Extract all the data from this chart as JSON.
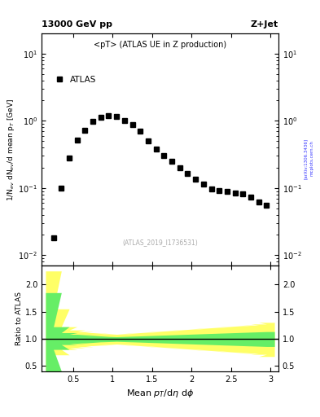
{
  "title_top": "13000 GeV pp",
  "title_right": "Z+Jet",
  "plot_title": "<pT> (ATLAS UE in Z production)",
  "legend_label": "ATLAS",
  "ylabel_main": "1/N$_{ev}$ dN$_{ev}$/d mean p$_T$ [GeV]",
  "ylabel_ratio": "Ratio to ATLAS",
  "watermark": "(ATLAS_2019_I1736531)",
  "arxiv_text": "[arXiv:1306.3436]",
  "mcplots_text": "mcplots.cern.ch",
  "main_x": [
    0.25,
    0.35,
    0.45,
    0.55,
    0.65,
    0.75,
    0.85,
    0.95,
    1.05,
    1.15,
    1.25,
    1.35,
    1.45,
    1.55,
    1.65,
    1.75,
    1.85,
    1.95,
    2.05,
    2.15,
    2.25,
    2.35,
    2.45,
    2.55,
    2.65,
    2.75,
    2.85,
    2.95
  ],
  "main_y": [
    0.018,
    0.1,
    0.28,
    0.52,
    0.72,
    0.97,
    1.12,
    1.2,
    1.15,
    1.0,
    0.88,
    0.7,
    0.5,
    0.38,
    0.3,
    0.25,
    0.2,
    0.165,
    0.135,
    0.115,
    0.098,
    0.092,
    0.088,
    0.085,
    0.082,
    0.073,
    0.062,
    0.055
  ],
  "ylim_main": [
    0.007,
    20.0
  ],
  "xlim": [
    0.1,
    3.1
  ],
  "xticks": [
    0.5,
    1.0,
    1.5,
    2.0,
    2.5,
    3.0
  ],
  "ratio_yellow_upper": [
    2.25,
    1.55,
    1.22,
    1.16,
    1.13,
    1.11,
    1.1,
    1.09,
    1.08,
    1.09,
    1.1,
    1.11,
    1.12,
    1.13,
    1.14,
    1.15,
    1.16,
    1.17,
    1.18,
    1.19,
    1.2,
    1.21,
    1.22,
    1.23,
    1.24,
    1.25,
    1.27,
    1.3
  ],
  "ratio_yellow_lower": [
    0.33,
    0.7,
    0.8,
    0.83,
    0.85,
    0.87,
    0.88,
    0.89,
    0.9,
    0.89,
    0.88,
    0.87,
    0.86,
    0.85,
    0.84,
    0.83,
    0.82,
    0.81,
    0.8,
    0.79,
    0.78,
    0.77,
    0.76,
    0.75,
    0.74,
    0.73,
    0.71,
    0.67
  ],
  "ratio_green_upper": [
    1.85,
    1.22,
    1.11,
    1.08,
    1.07,
    1.06,
    1.05,
    1.04,
    1.035,
    1.04,
    1.045,
    1.05,
    1.055,
    1.06,
    1.065,
    1.07,
    1.075,
    1.08,
    1.085,
    1.09,
    1.095,
    1.1,
    1.105,
    1.11,
    1.115,
    1.12,
    1.125,
    1.13
  ],
  "ratio_green_lower": [
    0.4,
    0.8,
    0.89,
    0.91,
    0.92,
    0.93,
    0.94,
    0.945,
    0.95,
    0.945,
    0.94,
    0.935,
    0.93,
    0.925,
    0.92,
    0.915,
    0.91,
    0.905,
    0.9,
    0.895,
    0.89,
    0.885,
    0.88,
    0.875,
    0.87,
    0.865,
    0.86,
    0.855
  ],
  "ylim_ratio": [
    0.4,
    2.35
  ],
  "yticks_ratio": [
    0.5,
    1.0,
    1.5,
    2.0
  ],
  "yellow_color": "#ffff66",
  "green_color": "#66ee66",
  "marker_color": "black",
  "marker_style": "s",
  "marker_size": 4.5
}
